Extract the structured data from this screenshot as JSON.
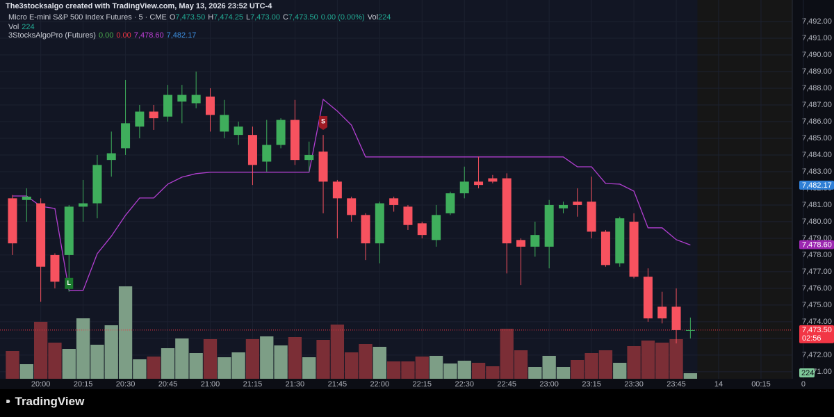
{
  "chart_data": {
    "type": "candlestick",
    "attribution": "The3stocksalgo created with TradingView.com, May 13, 2026 23:52 UTC-4",
    "symbol": "Micro E-mini S&P 500 Index Futures · 5 · CME",
    "ohlc_legend": [
      {
        "label": "O",
        "value": "7,473.50"
      },
      {
        "label": "H",
        "value": "7,474.25"
      },
      {
        "label": "L",
        "value": "7,473.00"
      },
      {
        "label": "C",
        "value": "7,473.50"
      }
    ],
    "change": "0.00 (0.00%)",
    "header_volume": {
      "label": "Vol",
      "value": "224"
    },
    "volume_legend": {
      "label": "Vol",
      "value": "224"
    },
    "indicator_legend": {
      "name": "3StocksAlgoPro (Futures)",
      "values": [
        "0.00",
        "0.00",
        "7,478.60",
        "7,482.17"
      ],
      "colors": [
        "#4caf50",
        "#f23645",
        "#c040d8",
        "#3d8fe0"
      ]
    },
    "categories": [
      null,
      null,
      "20:00",
      null,
      null,
      "20:15",
      null,
      null,
      "20:30",
      null,
      null,
      "20:45",
      null,
      null,
      "21:00",
      null,
      null,
      "21:15",
      null,
      null,
      "21:30",
      null,
      null,
      "21:45",
      null,
      null,
      "22:00",
      null,
      null,
      "22:15",
      null,
      null,
      "22:30",
      null,
      null,
      "22:45",
      null,
      null,
      "23:00",
      null,
      null,
      "23:15",
      null,
      null,
      "23:30",
      null,
      null,
      "23:45",
      null,
      null,
      "14",
      null,
      null,
      "00:15",
      null,
      null,
      "0"
    ],
    "open": [
      7481.4,
      7481.3,
      7481.1,
      7478.0,
      7478.0,
      7480.9,
      7481.1,
      7483.7,
      7484.4,
      7485.7,
      7486.6,
      7486.3,
      7487.2,
      7487.1,
      7487.5,
      7485.4,
      7485.2,
      7485.2,
      7483.6,
      7484.6,
      7486.1,
      7483.7,
      7484.2,
      7482.4,
      7481.4,
      7480.4,
      7478.7,
      7481.4,
      7480.9,
      7479.9,
      7478.9,
      7480.5,
      7481.7,
      7482.4,
      7482.6,
      7482.6,
      7478.9,
      7478.5,
      7478.5,
      7480.8,
      7481.2,
      7481.2,
      7479.4,
      7477.5,
      7480.0,
      7476.7,
      7474.9,
      7474.9,
      7473.5,
      null,
      null,
      null,
      null,
      null,
      null,
      null,
      null
    ],
    "high": [
      7481.6,
      7482,
      7481.4,
      7478.1,
      7481,
      7482.5,
      7484,
      7485.4,
      7488.5,
      7487,
      7487,
      7488.2,
      7488.2,
      7489,
      7488,
      7487.3,
      7486,
      7485.7,
      7486.1,
      7486.2,
      7487.3,
      7484.8,
      7485.2,
      7482.5,
      7481.5,
      7480.5,
      7481.2,
      7481.5,
      7481,
      7480,
      7481,
      7481.8,
      7483.3,
      7483.9,
      7482.8,
      7482.9,
      7479,
      7480,
      7481.3,
      7481.2,
      7482,
      7482.7,
      7479.5,
      7480.3,
      7480.5,
      7477.2,
      7475.8,
      7476,
      7474.25,
      null,
      null,
      null,
      null,
      null,
      null,
      null,
      null
    ],
    "low": [
      7478,
      7480,
      7475.2,
      7476,
      7475.8,
      7480,
      7480.2,
      7482.7,
      7484,
      7485,
      7485.5,
      7486,
      7485.9,
      7486.8,
      7485.4,
      7485,
      7484.6,
      7482.2,
      7483,
      7484.4,
      7483.4,
      7483,
      7480.5,
      7479,
      7480,
      7477.7,
      7477.5,
      7480.6,
      7479.5,
      7479,
      7478.5,
      7480.4,
      7481.4,
      7482,
      7482.3,
      7476.9,
      7476.2,
      7477.9,
      7477.2,
      7480.5,
      7480.3,
      7479,
      7477.3,
      7477.3,
      7476.6,
      7474,
      7473.9,
      7472.7,
      7473,
      null,
      null,
      null,
      null,
      null,
      null,
      null,
      null
    ],
    "close": [
      7478.7,
      7481.5,
      7477.3,
      7476.4,
      7480.9,
      7481.1,
      7483.4,
      7484.1,
      7485.9,
      7486.6,
      7486.2,
      7487.6,
      7487.6,
      7487.6,
      7486.4,
      7486.4,
      7485.7,
      7483.4,
      7484.6,
      7486.1,
      7483.7,
      7484.0,
      7482.4,
      7481.4,
      7480.4,
      7478.7,
      7481.1,
      7481.0,
      7479.8,
      7479.2,
      7480.4,
      7481.7,
      7482.4,
      7482.2,
      7482.4,
      7478.7,
      7478.5,
      7479.2,
      7481.0,
      7481.0,
      7481.0,
      7479.4,
      7477.4,
      7480.2,
      7476.7,
      7474.2,
      7474.2,
      7473.5,
      7473.5,
      null,
      null,
      null,
      null,
      null,
      null,
      null,
      null
    ],
    "up_color": "#3fae5c",
    "down_color": "#f7525f",
    "volume": {
      "values": [
        1120,
        588,
        2296,
        1456,
        1204,
        2436,
        1372,
        2156,
        3724,
        784,
        896,
        1232,
        1624,
        1036,
        1596,
        868,
        1064,
        1596,
        1708,
        1344,
        1680,
        868,
        1568,
        2184,
        1064,
        1400,
        1288,
        700,
        700,
        896,
        924,
        616,
        728,
        644,
        504,
        2016,
        1148,
        476,
        924,
        476,
        756,
        1036,
        1148,
        644,
        1316,
        1540,
        1456,
        1596,
        224,
        null,
        null,
        null,
        null,
        null,
        null,
        null,
        null
      ],
      "up_color": "#7d9e86",
      "down_color": "#7b2e36",
      "ylim": [
        0,
        15260
      ]
    },
    "volume_label": {
      "value": 224,
      "label": "224",
      "color": "#7fc99a"
    },
    "indicator": {
      "color": "#b23fd1",
      "values": [
        7481.54,
        7481.54,
        7480.92,
        7480.79,
        7475.88,
        7475.88,
        7478.08,
        7479.13,
        7480.38,
        7481.42,
        7481.42,
        7482.25,
        7482.67,
        7482.88,
        7482.96,
        7482.96,
        7482.96,
        7482.96,
        7482.96,
        7482.96,
        7482.96,
        7482.96,
        7487.33,
        7486.63,
        7485.79,
        7483.88,
        7483.88,
        7483.88,
        7483.88,
        7483.88,
        7483.88,
        7483.88,
        7483.88,
        7483.88,
        7483.88,
        7483.88,
        7483.88,
        7483.88,
        7483.88,
        7483.88,
        7483.29,
        7483.29,
        7482.29,
        7482.25,
        7481.83,
        7479.63,
        7479.63,
        7478.92,
        7478.6,
        null,
        null,
        null,
        null,
        null,
        null,
        null,
        null
      ]
    },
    "signals": [
      null,
      null,
      null,
      null,
      "L",
      null,
      null,
      null,
      null,
      null,
      null,
      null,
      null,
      null,
      null,
      null,
      null,
      null,
      null,
      null,
      null,
      null,
      "S",
      null,
      null,
      null,
      null,
      null,
      null,
      null,
      null,
      null,
      null,
      null,
      null,
      null,
      null,
      null,
      null,
      null,
      null,
      null,
      null,
      null,
      null,
      null,
      null,
      null,
      null,
      null,
      null,
      null,
      null,
      null,
      null,
      null,
      null
    ],
    "price_labels": [
      {
        "value": 7473.5,
        "label": "7,473.50",
        "color": "#f23645"
      },
      {
        "value": 7478.6,
        "label": "7,478.60",
        "color": "#9c27b0"
      },
      {
        "value": 7482.17,
        "label": "7,482.17",
        "color": "#2f7fd6"
      }
    ],
    "countdown": "02:56",
    "ylim": [
      7470.58,
      7493.29
    ],
    "yticks": [
      {
        "value": 7471,
        "label": "7,471.00"
      },
      {
        "value": 7472,
        "label": "7,472.00"
      },
      {
        "value": 7473,
        "label": "7,473.00"
      },
      {
        "value": 7474,
        "label": "7,474.00"
      },
      {
        "value": 7475,
        "label": "7,475.00"
      },
      {
        "value": 7476,
        "label": "7,476.00"
      },
      {
        "value": 7477,
        "label": "7,477.00"
      },
      {
        "value": 7478,
        "label": "7,478.00"
      },
      {
        "value": 7479,
        "label": "7,479.00"
      },
      {
        "value": 7480,
        "label": "7,480.00"
      },
      {
        "value": 7481,
        "label": "7,481.00"
      },
      {
        "value": 7482,
        "label": "7,482.00"
      },
      {
        "value": 7483,
        "label": "7,483.00"
      },
      {
        "value": 7484,
        "label": "7,484.00"
      },
      {
        "value": 7485,
        "label": "7,485.00"
      },
      {
        "value": 7486,
        "label": "7,486.00"
      },
      {
        "value": 7487,
        "label": "7,487.00"
      },
      {
        "value": 7488,
        "label": "7,488.00"
      },
      {
        "value": 7489,
        "label": "7,489.00"
      },
      {
        "value": 7490,
        "label": "7,490.00"
      },
      {
        "value": 7491,
        "label": "7,491.00"
      },
      {
        "value": 7492,
        "label": "7,492.00"
      }
    ],
    "grid": true,
    "brand": "TradingView"
  }
}
